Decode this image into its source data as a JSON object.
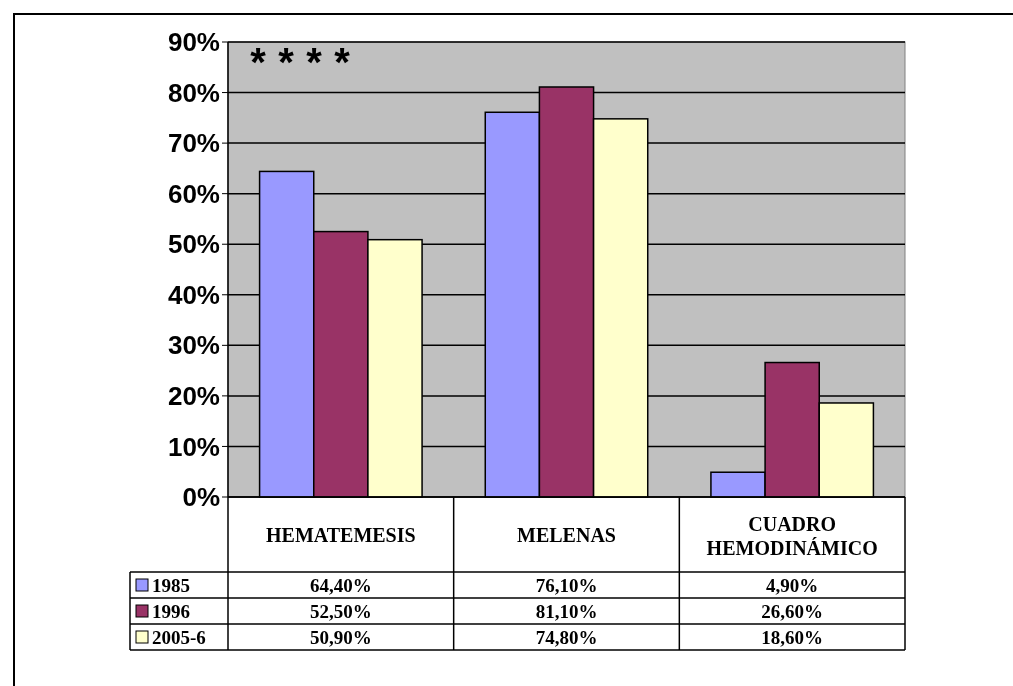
{
  "chart_data": {
    "type": "bar",
    "categories": [
      "HEMATEMESIS",
      "MELENAS",
      "CUADRO HEMODINÁMICO"
    ],
    "series": [
      {
        "name": "1985",
        "color": "#9999ff",
        "values": [
          64.4,
          76.1,
          4.9
        ],
        "value_labels": [
          "64,40%",
          "76,10%",
          "4,90%"
        ]
      },
      {
        "name": "1996",
        "color": "#993366",
        "values": [
          52.5,
          81.1,
          26.6
        ],
        "value_labels": [
          "52,50%",
          "81,10%",
          "26,60%"
        ]
      },
      {
        "name": "2005-6",
        "color": "#ffffcc",
        "values": [
          50.9,
          74.8,
          18.6
        ],
        "value_labels": [
          "50,90%",
          "74,80%",
          "18,60%"
        ]
      }
    ],
    "ylim": [
      0,
      90
    ],
    "yticks": [
      {
        "value": 0,
        "label": "0%"
      },
      {
        "value": 10,
        "label": "10%"
      },
      {
        "value": 20,
        "label": "20%"
      },
      {
        "value": 30,
        "label": "30%"
      },
      {
        "value": 40,
        "label": "40%"
      },
      {
        "value": 50,
        "label": "50%"
      },
      {
        "value": 60,
        "label": "60%"
      },
      {
        "value": 70,
        "label": "70%"
      },
      {
        "value": 80,
        "label": "80%"
      },
      {
        "value": 90,
        "label": "90%"
      }
    ],
    "grid": "y",
    "legend": "bottom",
    "annotations": [
      "*",
      "*",
      "*",
      "*"
    ]
  }
}
